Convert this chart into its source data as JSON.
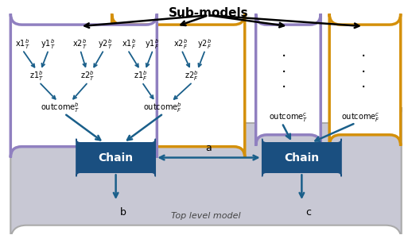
{
  "fig_width": 5.18,
  "fig_height": 2.96,
  "dpi": 100,
  "purple_color": "#9080c0",
  "orange_color": "#d4900a",
  "chain_bg": "#1a4f80",
  "arrow_color": "#1a5f8a",
  "top_level_bg": "#c8c8d4",
  "top_level_ec": "#aaaaaa",
  "sub_models_label": "Sub-models",
  "top_level_label": "Top level model",
  "chain_text": "Chain",
  "label_a": "a",
  "label_b": "b",
  "label_c": "c"
}
